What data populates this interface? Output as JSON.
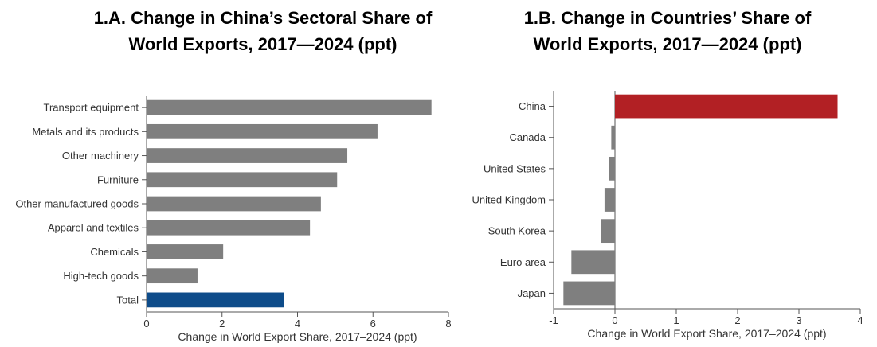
{
  "chart_data": [
    {
      "type": "bar",
      "orientation": "horizontal",
      "title_lines": [
        "1.A. Change in China’s Sectoral Share of",
        "World Exports, 2017—2024 (ppt)"
      ],
      "categories": [
        "Transport equipment",
        "Metals and its products",
        "Other machinery",
        "Furniture",
        "Other manufactured goods",
        "Apparel and textiles",
        "Chemicals",
        "High-tech goods",
        "Total"
      ],
      "values": [
        7.55,
        6.12,
        5.32,
        5.05,
        4.62,
        4.33,
        2.03,
        1.35,
        3.65
      ],
      "bar_colors": [
        "#7f7f7f",
        "#7f7f7f",
        "#7f7f7f",
        "#7f7f7f",
        "#7f7f7f",
        "#7f7f7f",
        "#7f7f7f",
        "#7f7f7f",
        "#0e4c8a"
      ],
      "xlabel": "Change in World Export Share, 2017–2024 (ppt)",
      "xlim": [
        0,
        8
      ],
      "xticks": [
        0,
        2,
        4,
        6,
        8
      ],
      "xtick_labels": [
        "0",
        "2",
        "4",
        "6",
        "8"
      ],
      "grid": false
    },
    {
      "type": "bar",
      "orientation": "horizontal",
      "title_lines": [
        "1.B. Change in Countries’ Share of",
        "World Exports, 2017—2024 (ppt)"
      ],
      "categories": [
        "China",
        "Canada",
        "United States",
        "United Kingdom",
        "South Korea",
        "Euro area",
        "Japan"
      ],
      "values": [
        3.63,
        -0.06,
        -0.1,
        -0.17,
        -0.23,
        -0.71,
        -0.84
      ],
      "bar_colors": [
        "#b22024",
        "#7f7f7f",
        "#7f7f7f",
        "#7f7f7f",
        "#7f7f7f",
        "#7f7f7f",
        "#7f7f7f"
      ],
      "xlabel": "Change in World Export Share, 2017–2024 (ppt)",
      "xlim": [
        -1,
        4
      ],
      "xticks": [
        -1,
        0,
        1,
        2,
        3,
        4
      ],
      "xtick_labels": [
        "-1",
        "0",
        "1",
        "2",
        "3",
        "4"
      ],
      "grid": false
    }
  ],
  "colors": {
    "bar_gray": "#7f7f7f",
    "highlight_blue": "#0e4c8a",
    "highlight_red": "#b22024",
    "axis": "#555555"
  }
}
